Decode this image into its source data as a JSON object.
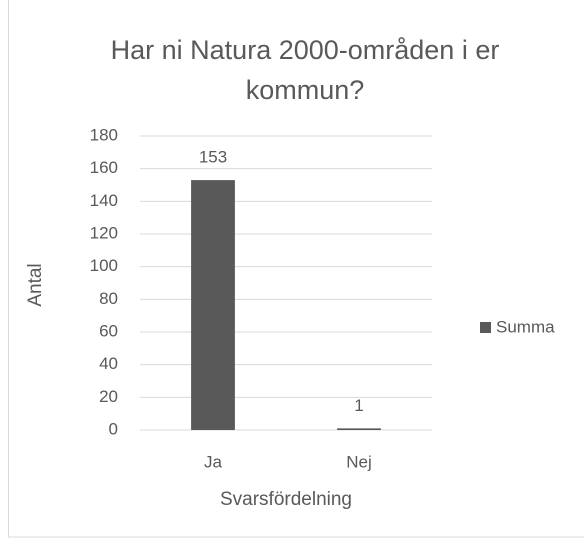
{
  "chart_data": {
    "type": "bar",
    "title": "Har ni Natura 2000-områden i er kommun?",
    "x_label": "Svarsfördelning",
    "y_label": "Antal",
    "categories": [
      "Ja",
      "Nej"
    ],
    "series": [
      {
        "name": "Summa",
        "color": "#595959",
        "values": [
          153,
          1
        ]
      }
    ],
    "ylim": [
      0,
      180
    ],
    "yticks": [
      0,
      20,
      40,
      60,
      80,
      100,
      120,
      140,
      160,
      180
    ],
    "grid": true,
    "legend": "right"
  }
}
